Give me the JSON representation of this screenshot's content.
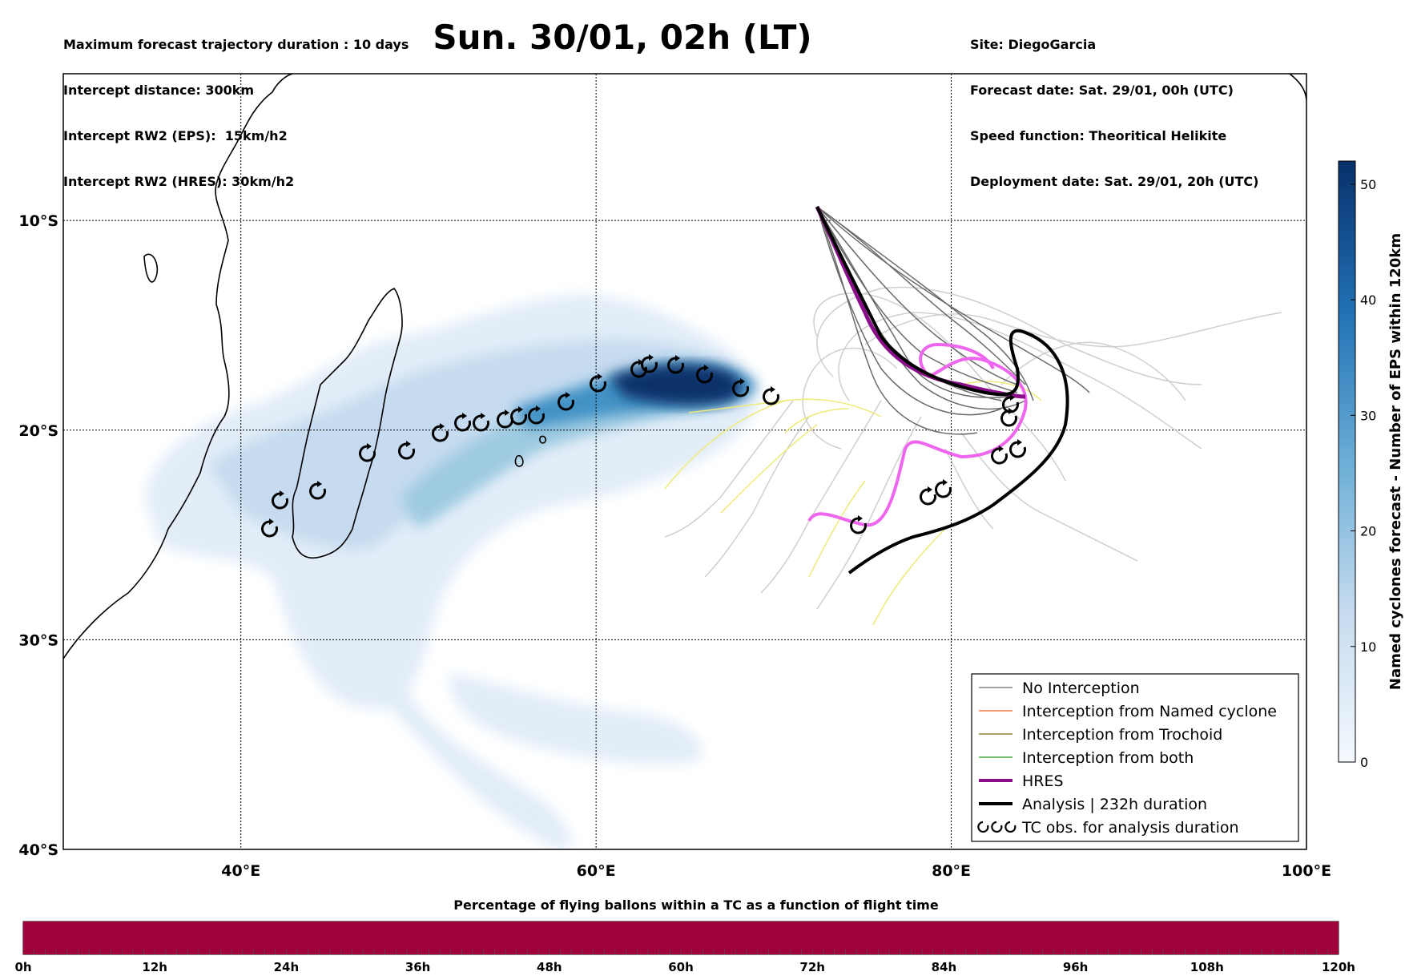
{
  "header": {
    "left_lines": [
      "Maximum forecast trajectory duration : 10 days",
      "Intercept distance: 300km",
      "Intercept RW2 (EPS):  15km/h2",
      "Intercept RW2 (HRES): 30km/h2"
    ],
    "title": "Sun. 30/01, 02h (LT)",
    "right_lines": [
      "Site: DiegoGarcia",
      "Forecast date: Sat. 29/01, 00h (UTC)",
      "Speed function: Theoritical Helikite",
      "Deployment date: Sat. 29/01, 20h (UTC)"
    ]
  },
  "map": {
    "lon_labels": [
      "40°E",
      "60°E",
      "80°E",
      "100°E"
    ],
    "lat_labels": [
      "10°S",
      "20°S",
      "30°S",
      "40°S"
    ],
    "lon_range": [
      30,
      100
    ],
    "lat_range": [
      -3,
      -40
    ],
    "gridlines": true,
    "colors": {
      "eps_track": "#6a6a6a",
      "light_track": "#cfcfcf",
      "yellow_track": "#eeea7a",
      "hres": "#8b0f8b",
      "hres_light": "#ee66ee",
      "analysis": "#000000",
      "named_cyclone": "#ff5a1f",
      "trochoid": "#7a6a10",
      "both": "#1a9a1a"
    }
  },
  "legend": {
    "items": [
      {
        "label": "No Interception",
        "color": "#6a6a6a",
        "style": "thin"
      },
      {
        "label": "Interception from Named cyclone",
        "color": "#ff5a1f",
        "style": "thin"
      },
      {
        "label": "Interception from Trochoid",
        "color": "#7a6a10",
        "style": "thin"
      },
      {
        "label": "Interception from both",
        "color": "#1a9a1a",
        "style": "thin"
      },
      {
        "label": "HRES",
        "color": "#8b0f8b",
        "style": "thick"
      },
      {
        "label": "Analysis | 232h duration",
        "color": "#000000",
        "style": "thick"
      },
      {
        "label": "TC obs. for analysis duration",
        "color": "#000000",
        "style": "symbol"
      }
    ]
  },
  "colorbar": {
    "label": "Named cyclones forecast - Number of EPS within 120km",
    "ticks": [
      "0",
      "10",
      "20",
      "30",
      "40",
      "50"
    ],
    "min": 0,
    "max": 52
  },
  "progress": {
    "title": "Percentage of flying ballons within a TC as a function of flight time",
    "ticks": [
      "0h",
      "12h",
      "24h",
      "36h",
      "48h",
      "60h",
      "72h",
      "84h",
      "96h",
      "108h",
      "120h"
    ],
    "fill_color": "#a0003c",
    "percent": 100
  }
}
